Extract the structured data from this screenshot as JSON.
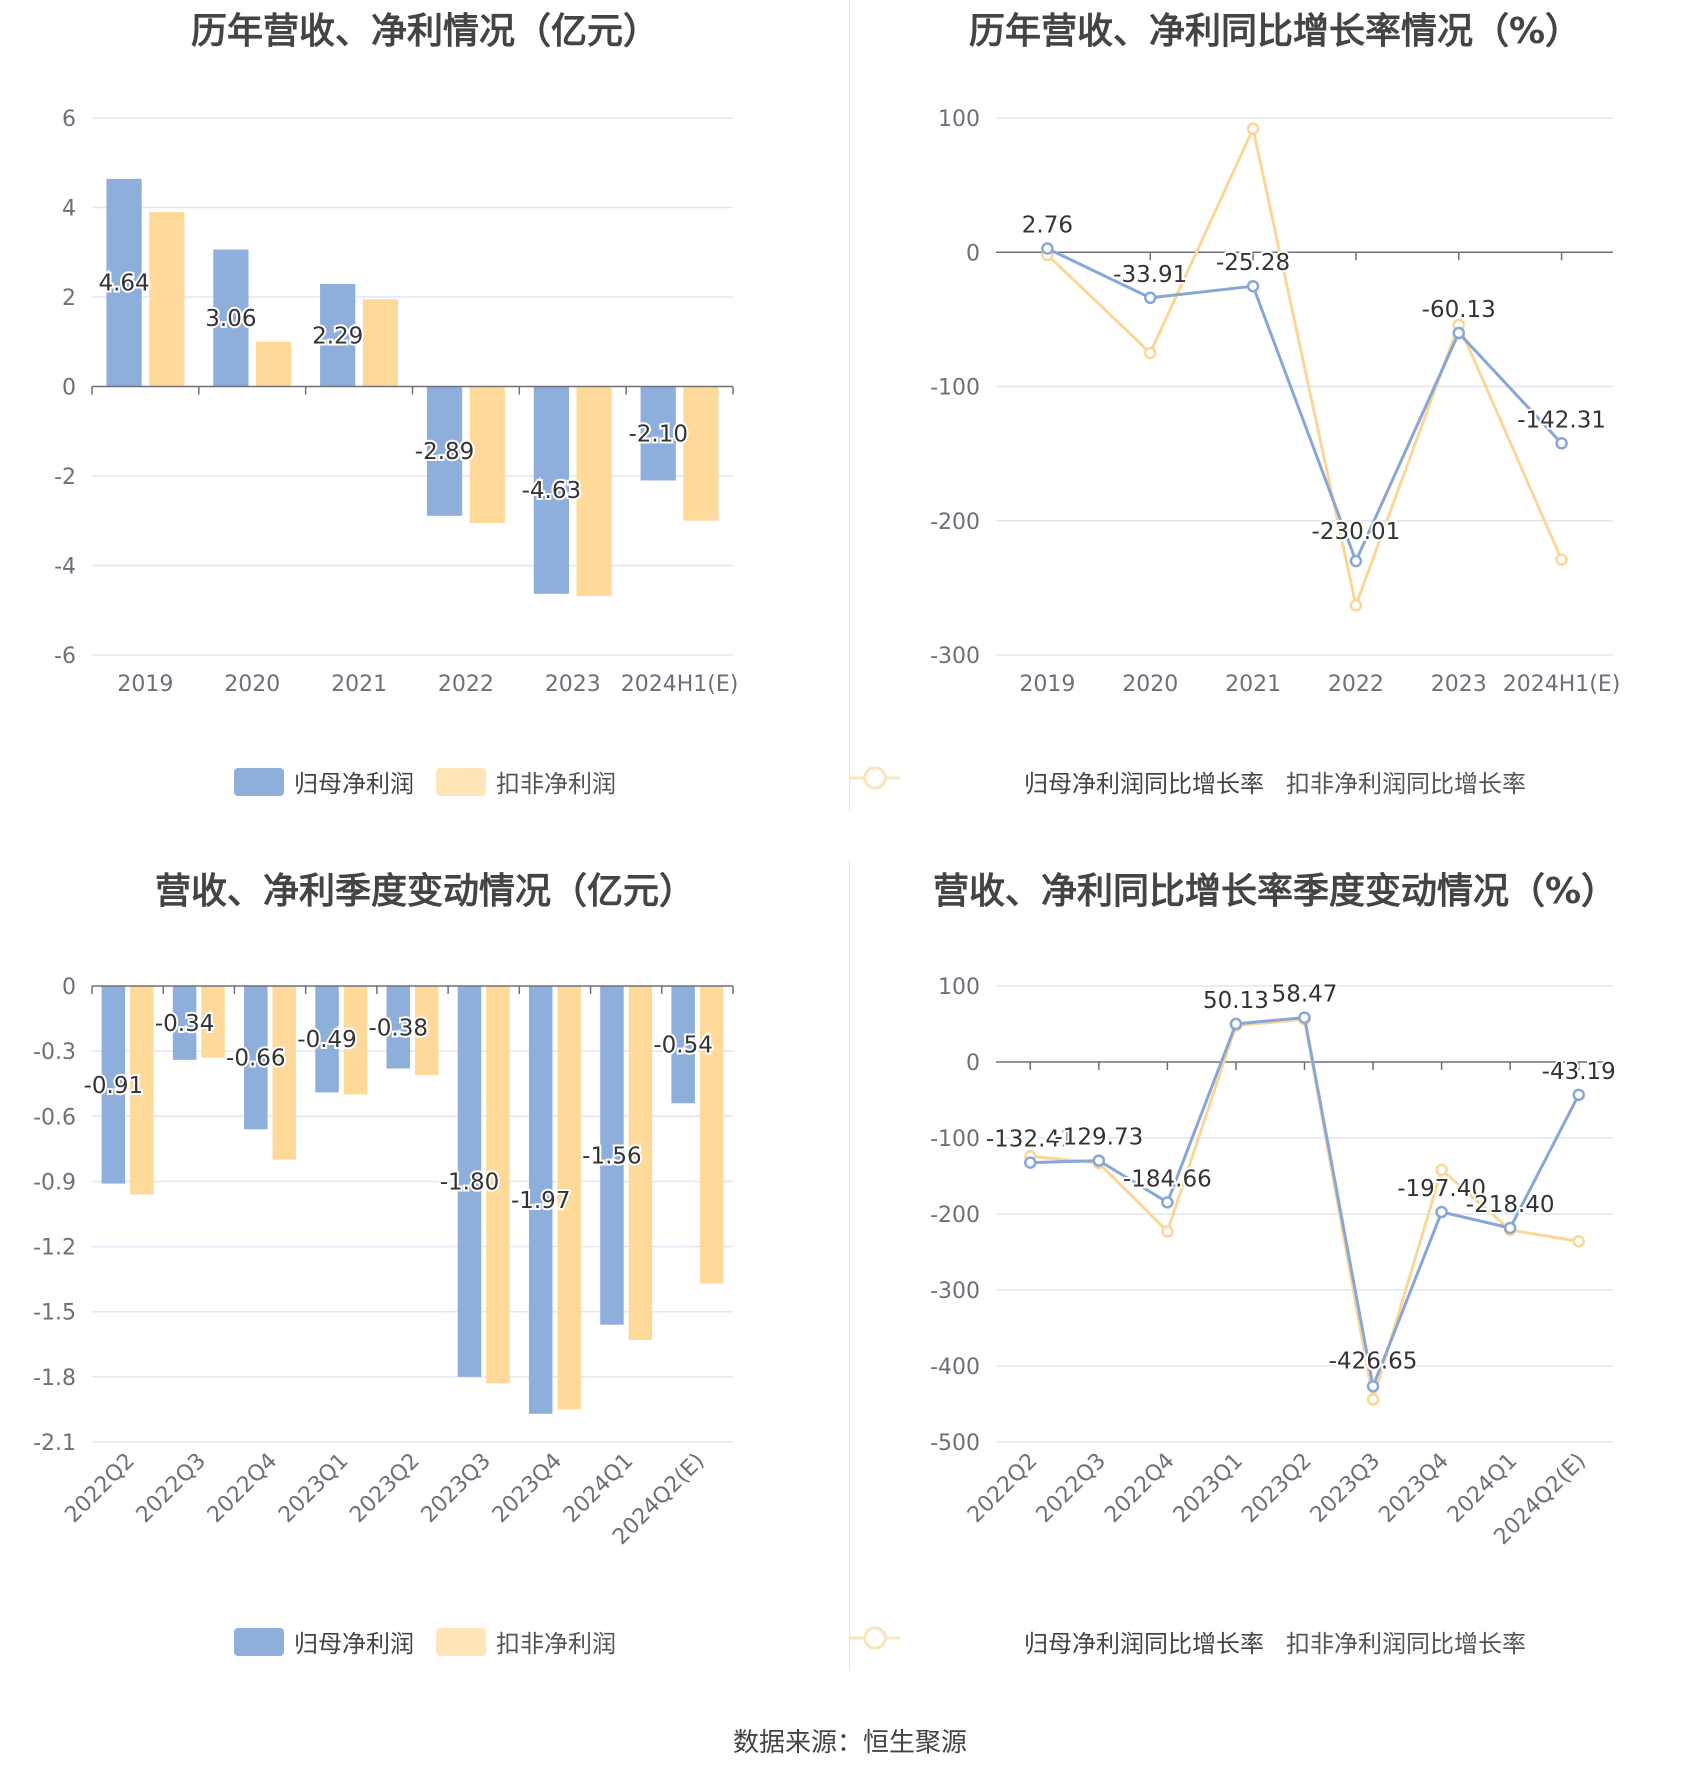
{
  "colors": {
    "blue": "#8eaedb",
    "orange": "#ffd99a",
    "blue_line": "#88a6d6",
    "orange_line": "#fbd797",
    "grid": "#e0e6f1",
    "axis": "#6e7079",
    "label": "#6e7079"
  },
  "footer": {
    "text": "数据来源：恒生聚源"
  },
  "panels": [
    {
      "title": "历年营收、净利情况（亿元）",
      "legend": [
        {
          "name": "归母净利润",
          "icon": "rect-legend-icon"
        },
        {
          "name": "扣非净利润",
          "icon": "rect-legend-icon"
        }
      ],
      "chart_data": {
        "type": "bar",
        "categories": [
          "2019",
          "2020",
          "2021",
          "2022",
          "2023",
          "2024H1(E)"
        ],
        "ylim": [
          -6,
          6
        ],
        "yticks": [
          -6,
          -4,
          -2,
          0,
          2,
          4,
          6
        ],
        "ytick_labels": [
          "-6",
          "-4",
          "-2",
          "0",
          "2",
          "4",
          "6"
        ],
        "series": [
          {
            "name": "归母净利润",
            "values": [
              4.64,
              3.06,
              2.29,
              -2.89,
              -4.63,
              -2.1
            ],
            "labels": [
              "4.64",
              "3.06",
              "2.29",
              "-2.89",
              "-4.63",
              "-2.10"
            ]
          },
          {
            "name": "扣非净利润",
            "values": [
              3.9,
              1.0,
              1.95,
              -3.05,
              -4.68,
              -3.0
            ]
          }
        ],
        "rotate_xlabels": false
      }
    },
    {
      "title": "历年营收、净利同比增长率情况（%）",
      "legend": [
        {
          "name": "归母净利润同比增长率",
          "icon": "line-circle-legend-icon"
        },
        {
          "name": "扣非净利润同比增长率",
          "icon": "line-circle-legend-icon"
        }
      ],
      "chart_data": {
        "type": "line",
        "categories": [
          "2019",
          "2020",
          "2021",
          "2022",
          "2023",
          "2024H1(E)"
        ],
        "ylim": [
          -300,
          100
        ],
        "yticks": [
          -300,
          -200,
          -100,
          0,
          100
        ],
        "ytick_labels": [
          "-300",
          "-200",
          "-100",
          "0",
          "100"
        ],
        "series": [
          {
            "name": "归母净利润同比增长率",
            "values": [
              2.76,
              -33.91,
              -25.28,
              -230.01,
              -60.13,
              -142.31
            ],
            "labels": [
              "2.76",
              "-33.91",
              "-25.28",
              "-230.01",
              "-60.13",
              "-142.31"
            ]
          },
          {
            "name": "扣非净利润同比增长率",
            "values": [
              -2,
              -75,
              92,
              -263,
              -54,
              -229
            ]
          }
        ],
        "rotate_xlabels": false
      }
    },
    {
      "title": "营收、净利季度变动情况（亿元）",
      "legend": [
        {
          "name": "归母净利润",
          "icon": "rect-legend-icon"
        },
        {
          "name": "扣非净利润",
          "icon": "rect-legend-icon"
        }
      ],
      "chart_data": {
        "type": "bar",
        "categories": [
          "2022Q2",
          "2022Q3",
          "2022Q4",
          "2023Q1",
          "2023Q2",
          "2023Q3",
          "2023Q4",
          "2024Q1",
          "2024Q2(E)"
        ],
        "ylim": [
          -2.1,
          0
        ],
        "yticks": [
          -2.1,
          -1.8,
          -1.5,
          -1.2,
          -0.9,
          -0.6,
          -0.3,
          0
        ],
        "ytick_labels": [
          "-2.1",
          "-1.8",
          "-1.5",
          "-1.2",
          "-0.9",
          "-0.6",
          "-0.3",
          "0"
        ],
        "series": [
          {
            "name": "归母净利润",
            "values": [
              -0.91,
              -0.34,
              -0.66,
              -0.49,
              -0.38,
              -1.8,
              -1.97,
              -1.56,
              -0.54
            ],
            "labels": [
              "-0.91",
              "-0.34",
              "-0.66",
              "-0.49",
              "-0.38",
              "-1.80",
              "-1.97",
              "-1.56",
              "-0.54"
            ]
          },
          {
            "name": "扣非净利润",
            "values": [
              -0.96,
              -0.33,
              -0.8,
              -0.5,
              -0.41,
              -1.83,
              -1.95,
              -1.63,
              -1.37
            ]
          }
        ],
        "rotate_xlabels": true
      }
    },
    {
      "title": "营收、净利同比增长率季度变动情况（%）",
      "legend": [
        {
          "name": "归母净利润同比增长率",
          "icon": "line-circle-legend-icon"
        },
        {
          "name": "扣非净利润同比增长率",
          "icon": "line-circle-legend-icon"
        }
      ],
      "chart_data": {
        "type": "line",
        "categories": [
          "2022Q2",
          "2022Q3",
          "2022Q4",
          "2023Q1",
          "2023Q2",
          "2023Q3",
          "2023Q4",
          "2024Q1",
          "2024Q2(E)"
        ],
        "ylim": [
          -500,
          100
        ],
        "yticks": [
          -500,
          -400,
          -300,
          -200,
          -100,
          0,
          100
        ],
        "ytick_labels": [
          "-500",
          "-400",
          "-300",
          "-200",
          "-100",
          "0",
          "100"
        ],
        "series": [
          {
            "name": "归母净利润同比增长率",
            "values": [
              -132.41,
              -129.73,
              -184.66,
              50.13,
              58.47,
              -426.65,
              -197.4,
              -218.4,
              -43.19
            ],
            "labels": [
              "-132.41",
              "-129.73",
              "-184.66",
              "50.13",
              "58.47",
              "-426.65",
              "-197.40",
              "-218.40",
              "-43.19"
            ]
          },
          {
            "name": "扣非净利润同比增长率",
            "values": [
              -124,
              -133,
              -223,
              48,
              56,
              -444,
              -142,
              -221,
              -236
            ]
          }
        ],
        "rotate_xlabels": true
      }
    }
  ]
}
